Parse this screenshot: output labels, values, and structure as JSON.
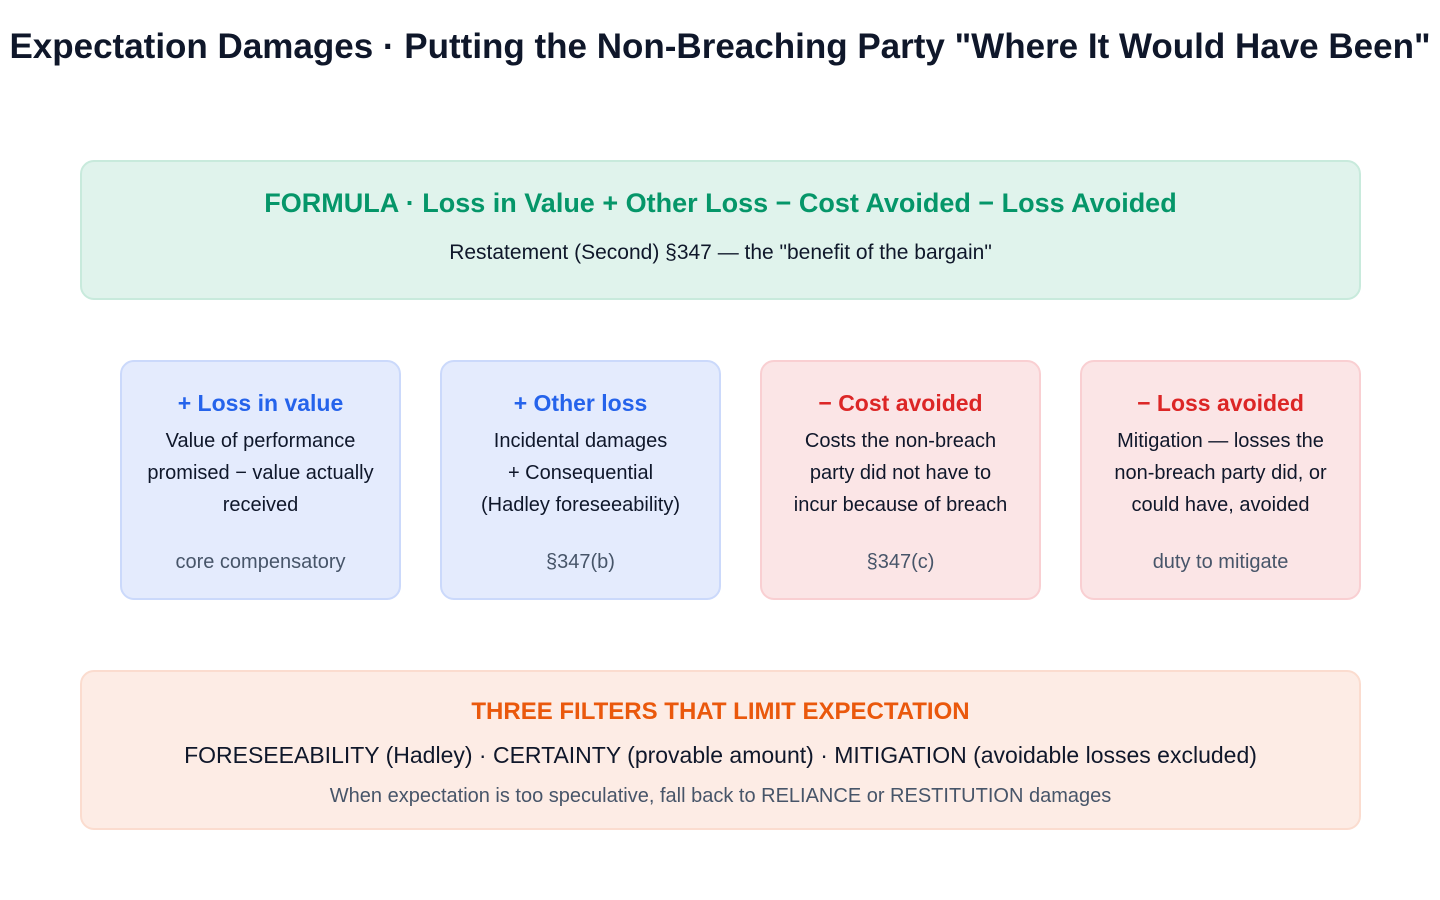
{
  "title": "Expectation Damages · Putting the Non-Breaching Party \"Where It Would Have Been\"",
  "formula": {
    "heading": "FORMULA · Loss in Value + Other Loss − Cost Avoided − Loss Avoided",
    "subtitle": "Restatement (Second) §347 — the \"benefit of the bargain\""
  },
  "cards": [
    {
      "heading": "+ Loss in value",
      "lines": [
        "Value of performance",
        "promised − value actually",
        "received"
      ],
      "note": "core compensatory"
    },
    {
      "heading": "+ Other loss",
      "lines": [
        "Incidental damages",
        "+ Consequential",
        "(Hadley foreseeability)"
      ],
      "note": "§347(b)"
    },
    {
      "heading": "− Cost avoided",
      "lines": [
        "Costs the non-breach",
        "party did not have to",
        "incur because of breach"
      ],
      "note": "§347(c)"
    },
    {
      "heading": "− Loss avoided",
      "lines": [
        "Mitigation — losses the",
        "non-breach party did, or",
        "could have, avoided"
      ],
      "note": "duty to mitigate"
    }
  ],
  "filters": {
    "heading": "THREE FILTERS THAT LIMIT EXPECTATION",
    "body": "FORESEEABILITY (Hadley) · CERTAINTY (provable amount) · MITIGATION (avoidable losses excluded)",
    "note": "When expectation is too speculative, fall back to RELIANCE or RESTITUTION damages"
  }
}
